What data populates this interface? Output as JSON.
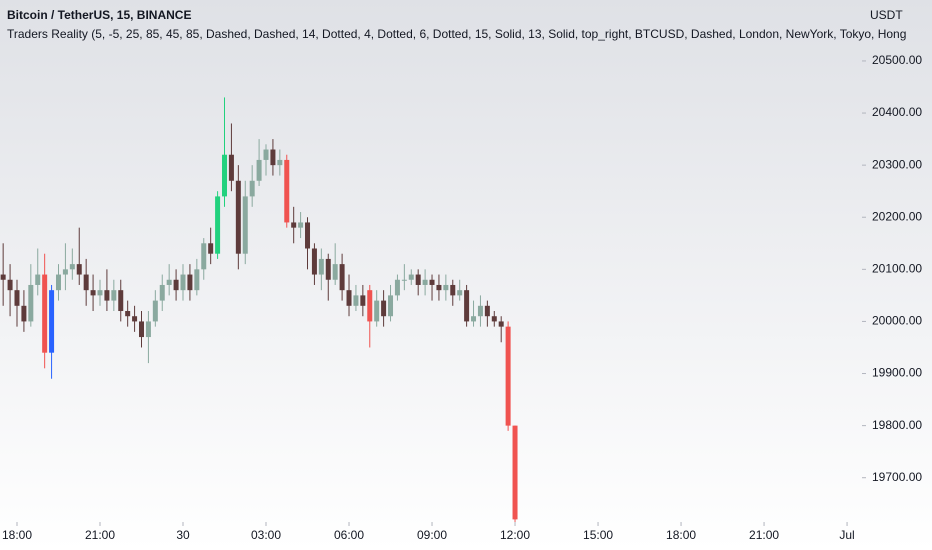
{
  "chart_data": {
    "type": "candlestick",
    "title": "Bitcoin / TetherUS, 15, BINANCE",
    "subtitle": "Traders Reality (5, -5, 25, 85, 45, 85, Dashed, Dashed, 14, Dotted, 4, Dotted, 6, Dotted, 15, Solid, 13, Solid, top_right, BTCUSD, Dashed, London, NewYork, Tokyo, Hong",
    "y_unit": "USDT",
    "x": [
      -0.5,
      -0.25,
      0,
      0.25,
      0.5,
      0.75,
      1,
      1.25,
      1.5,
      1.75,
      2,
      2.25,
      2.5,
      2.75,
      3,
      3.25,
      3.5,
      3.75,
      4,
      4.25,
      4.5,
      4.75,
      5,
      5.25,
      5.5,
      5.75,
      6,
      6.25,
      6.5,
      6.75,
      7,
      7.25,
      7.5,
      7.75,
      8,
      8.25,
      8.5,
      8.75,
      9,
      9.25,
      9.5,
      9.75,
      10,
      10.25,
      10.5,
      10.75,
      11,
      11.25,
      11.5,
      11.75,
      12,
      12.25,
      12.5,
      12.75,
      13,
      13.25,
      13.5,
      13.75,
      14,
      14.25,
      14.5,
      14.75,
      15,
      15.25,
      15.5,
      15.75,
      16,
      16.25,
      16.5,
      16.75,
      17,
      17.25,
      17.5,
      17.75,
      18
    ],
    "open": [
      20090,
      20080,
      20060,
      20030,
      20000,
      20070,
      20090,
      19940,
      20060,
      20090,
      20100,
      20110,
      20090,
      20060,
      20050,
      20060,
      20040,
      20060,
      20020,
      20010,
      20000,
      19970,
      20000,
      20040,
      20070,
      20080,
      20060,
      20090,
      20060,
      20100,
      20150,
      20130,
      20240,
      20320,
      20270,
      20130,
      20240,
      20270,
      20310,
      20330,
      20300,
      20310,
      20190,
      20180,
      20190,
      20140,
      20090,
      20120,
      20080,
      20110,
      20060,
      20030,
      20050,
      20060,
      20000,
      20040,
      20010,
      20050,
      20080,
      20080,
      20090,
      20070,
      20080,
      20070,
      20060,
      20070,
      20050,
      20060,
      20000,
      20010,
      20030,
      20010,
      20000,
      19990,
      19800
    ],
    "high": [
      20150,
      20110,
      20080,
      20060,
      20110,
      20140,
      20130,
      20070,
      20110,
      20150,
      20140,
      20180,
      20120,
      20090,
      20080,
      20100,
      20080,
      20080,
      20040,
      20030,
      20020,
      20020,
      20060,
      20090,
      20110,
      20100,
      20110,
      20110,
      20120,
      20160,
      20180,
      20250,
      20430,
      20380,
      20300,
      20270,
      20300,
      20350,
      20340,
      20350,
      20330,
      20320,
      20220,
      20210,
      20200,
      20150,
      20140,
      20130,
      20150,
      20130,
      20090,
      20070,
      20070,
      20070,
      20060,
      20060,
      20070,
      20090,
      20110,
      20100,
      20100,
      20100,
      20090,
      20090,
      20090,
      20080,
      20080,
      20070,
      20040,
      20050,
      20040,
      20020,
      20010,
      20000,
      19800
    ],
    "low": [
      20030,
      20010,
      19990,
      19980,
      19990,
      20050,
      19910,
      19890,
      20040,
      20060,
      20080,
      20070,
      20030,
      20020,
      20030,
      20020,
      20020,
      20000,
      19990,
      19980,
      19950,
      19920,
      19990,
      20020,
      20050,
      20040,
      20040,
      20040,
      20050,
      20080,
      20110,
      20120,
      20220,
      20250,
      20100,
      20110,
      20220,
      20260,
      20280,
      20280,
      20280,
      20180,
      20150,
      20160,
      20100,
      20070,
      20060,
      20040,
      20070,
      20040,
      20010,
      20020,
      20010,
      19950,
      19990,
      19990,
      20000,
      20040,
      20060,
      20070,
      20050,
      20050,
      20040,
      20040,
      20040,
      20030,
      20040,
      19990,
      19990,
      19990,
      19990,
      19990,
      19960,
      19790,
      19615
    ],
    "close": [
      20080,
      20060,
      20030,
      20000,
      20070,
      20090,
      19940,
      20060,
      20090,
      20100,
      20110,
      20090,
      20060,
      20050,
      20060,
      20040,
      20060,
      20020,
      20010,
      20000,
      19970,
      20000,
      20040,
      20070,
      20080,
      20060,
      20090,
      20060,
      20100,
      20150,
      20130,
      20240,
      20320,
      20270,
      20130,
      20240,
      20270,
      20310,
      20330,
      20300,
      20310,
      20190,
      20180,
      20190,
      20140,
      20090,
      20120,
      20080,
      20110,
      20060,
      20030,
      20050,
      20030,
      20000,
      20040,
      20010,
      20050,
      20080,
      20080,
      20090,
      20070,
      20080,
      20070,
      20060,
      20070,
      20050,
      20060,
      20000,
      20010,
      20030,
      20010,
      20000,
      19990,
      19800,
      19620
    ],
    "colors": [
      "#5e3b3b",
      "#5e3b3b",
      "#5e3b3b",
      "#5e3b3b",
      "#8aa99f",
      "#8aa99f",
      "#f05350",
      "#2962ff",
      "#8aa99f",
      "#8aa99f",
      "#8aa99f",
      "#5e3b3b",
      "#5e3b3b",
      "#5e3b3b",
      "#8aa99f",
      "#5e3b3b",
      "#8aa99f",
      "#5e3b3b",
      "#5e3b3b",
      "#5e3b3b",
      "#5e3b3b",
      "#8aa99f",
      "#8aa99f",
      "#8aa99f",
      "#8aa99f",
      "#5e3b3b",
      "#8aa99f",
      "#5e3b3b",
      "#8aa99f",
      "#8aa99f",
      "#5e3b3b",
      "#22d17e",
      "#22d17e",
      "#5e3b3b",
      "#5e3b3b",
      "#8aa99f",
      "#8aa99f",
      "#8aa99f",
      "#8aa99f",
      "#5e3b3b",
      "#8aa99f",
      "#f05350",
      "#5e3b3b",
      "#8aa99f",
      "#5e3b3b",
      "#5e3b3b",
      "#8aa99f",
      "#5e3b3b",
      "#8aa99f",
      "#5e3b3b",
      "#5e3b3b",
      "#8aa99f",
      "#5e3b3b",
      "#f05350",
      "#8aa99f",
      "#5e3b3b",
      "#8aa99f",
      "#8aa99f",
      "#8aa99f",
      "#8aa99f",
      "#5e3b3b",
      "#8aa99f",
      "#5e3b3b",
      "#5e3b3b",
      "#8aa99f",
      "#5e3b3b",
      "#8aa99f",
      "#5e3b3b",
      "#8aa99f",
      "#8aa99f",
      "#5e3b3b",
      "#5e3b3b",
      "#5e3b3b",
      "#f05350",
      "#f05350"
    ],
    "xlim": [
      -0.614,
      30.54
    ],
    "xticks": [
      {
        "value": 0,
        "label": "18:00"
      },
      {
        "value": 3,
        "label": "21:00"
      },
      {
        "value": 6,
        "label": "30"
      },
      {
        "value": 9,
        "label": "03:00"
      },
      {
        "value": 12,
        "label": "06:00"
      },
      {
        "value": 15,
        "label": "09:00"
      },
      {
        "value": 18,
        "label": "12:00"
      },
      {
        "value": 21,
        "label": "15:00"
      },
      {
        "value": 24,
        "label": "18:00"
      },
      {
        "value": 27,
        "label": "21:00"
      },
      {
        "value": 30,
        "label": "Jul"
      }
    ],
    "ylim": [
      19615,
      20617
    ],
    "yticks": [
      {
        "value": 19700,
        "label": "19700.00"
      },
      {
        "value": 19800,
        "label": "19800.00"
      },
      {
        "value": 19900,
        "label": "19900.00"
      },
      {
        "value": 20000,
        "label": "20000.00"
      },
      {
        "value": 20100,
        "label": "20100.00"
      },
      {
        "value": 20200,
        "label": "20200.00"
      },
      {
        "value": 20300,
        "label": "20300.00"
      },
      {
        "value": 20400,
        "label": "20400.00"
      },
      {
        "value": 20500,
        "label": "20500.00"
      }
    ]
  }
}
